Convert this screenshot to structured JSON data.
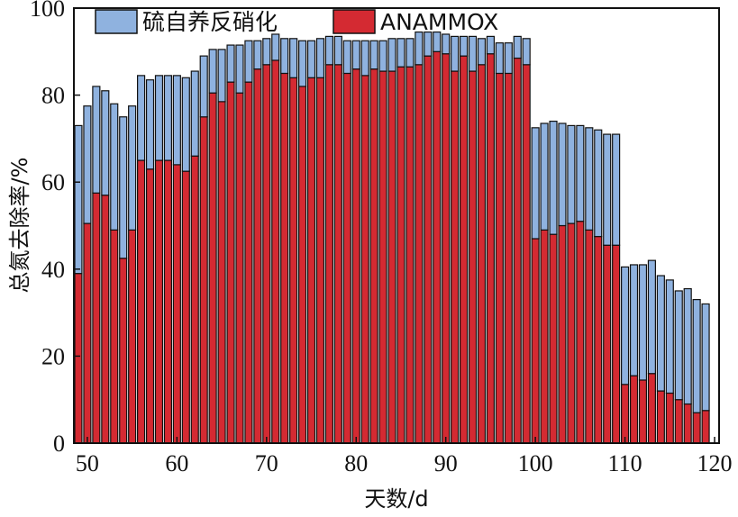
{
  "chart_data": {
    "type": "bar",
    "stacked": true,
    "xlabel": "天数/d",
    "ylabel": "总氮去除率/%",
    "xlim": [
      49,
      120
    ],
    "ylim": [
      0,
      100
    ],
    "xticks": [
      50,
      60,
      70,
      80,
      90,
      100,
      110,
      120
    ],
    "yticks": [
      0,
      20,
      40,
      60,
      80,
      100
    ],
    "legend_position": "top-left",
    "colors": {
      "anammox": "#d42a32",
      "sulfur": "#8fb2df",
      "edge": "#111111"
    },
    "x": [
      49,
      50,
      51,
      52,
      53,
      54,
      55,
      56,
      57,
      58,
      59,
      60,
      61,
      62,
      63,
      64,
      65,
      66,
      67,
      68,
      69,
      70,
      71,
      72,
      73,
      74,
      75,
      76,
      77,
      78,
      79,
      80,
      81,
      82,
      83,
      84,
      85,
      86,
      87,
      88,
      89,
      90,
      91,
      92,
      93,
      94,
      95,
      96,
      97,
      98,
      99,
      100,
      101,
      102,
      103,
      104,
      105,
      106,
      107,
      108,
      109,
      110,
      111,
      112,
      113,
      114,
      115,
      116,
      117,
      118,
      119
    ],
    "series": [
      {
        "name": "ANAMMOX",
        "values": [
          39,
          50.5,
          57.5,
          57,
          49,
          42.5,
          49,
          65,
          63,
          65,
          65,
          64,
          62.5,
          66,
          75,
          80.5,
          78.5,
          83,
          80.5,
          83,
          86,
          87,
          88,
          85,
          84,
          82,
          84,
          84,
          87,
          87,
          85,
          86,
          84.5,
          86,
          85.5,
          85.5,
          86.5,
          86.5,
          87,
          89,
          90,
          89.5,
          85.5,
          89,
          85.5,
          87,
          89.5,
          85,
          85,
          88.5,
          87,
          47,
          49,
          48,
          50,
          50.5,
          51,
          49,
          47.5,
          45.5,
          45.5,
          13.5,
          15.5,
          14.5,
          16,
          12,
          11.5,
          10,
          9,
          7,
          7.5
        ]
      },
      {
        "name": "硫自养反硝化",
        "values": [
          34,
          27,
          24.5,
          24,
          29,
          32.5,
          28.5,
          19.5,
          20.5,
          19.5,
          19.5,
          20.5,
          21.5,
          19.5,
          14,
          10,
          12,
          8.5,
          11,
          9.5,
          6.5,
          6,
          6,
          8,
          9,
          10.5,
          8.5,
          9,
          6.5,
          6.5,
          7.5,
          6.5,
          8,
          6.5,
          7,
          7.5,
          6.5,
          6.5,
          7.5,
          5.5,
          4.5,
          4.5,
          8,
          4.5,
          8,
          6,
          4,
          7,
          7,
          5,
          6,
          25.5,
          24.5,
          26,
          23.5,
          22.5,
          22,
          23.5,
          24.5,
          25.5,
          25.5,
          27,
          25.5,
          26.5,
          26,
          26.5,
          26,
          25,
          26.5,
          26,
          24.5
        ]
      }
    ]
  }
}
